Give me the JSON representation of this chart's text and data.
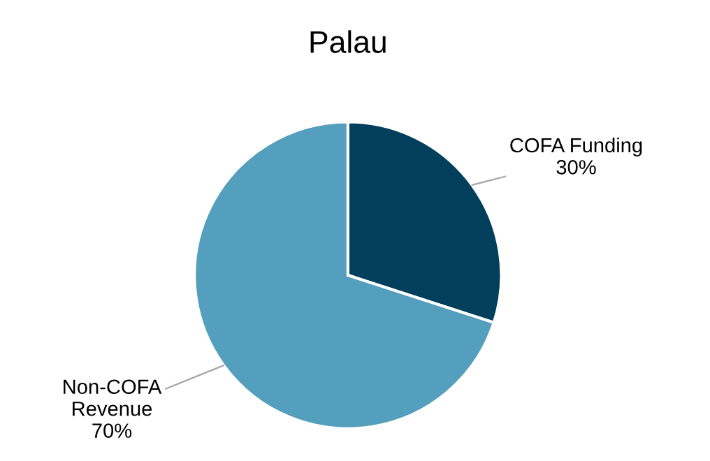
{
  "chart_data": {
    "type": "pie",
    "title": "Palau",
    "categories": [
      "COFA Funding",
      "Non-COFA Revenue"
    ],
    "values": [
      30,
      70
    ],
    "value_labels": [
      "30%",
      "70%"
    ],
    "colors": [
      "#023f5c",
      "#549fbd"
    ]
  }
}
